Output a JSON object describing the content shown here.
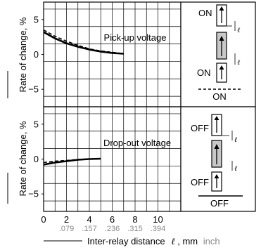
{
  "chart_data": [
    {
      "type": "line",
      "ylabel": "Rate of change, %",
      "annotation": "Pick-up voltage",
      "ylim": [
        -7.5,
        7.5
      ],
      "yticks": [
        5,
        0,
        -5
      ],
      "xlim": [
        0,
        12
      ],
      "series": [
        {
          "style": "solid",
          "x": [
            0,
            1,
            2,
            3,
            4,
            5,
            6,
            7
          ],
          "y": [
            3.2,
            2.3,
            1.6,
            1.1,
            0.7,
            0.4,
            0.2,
            0.1
          ]
        },
        {
          "style": "dashed",
          "x": [
            0,
            1,
            2,
            3,
            4,
            5,
            6,
            7
          ],
          "y": [
            3.5,
            2.6,
            1.9,
            1.3,
            0.8,
            0.5,
            0.3,
            0.1
          ]
        }
      ],
      "diagram": {
        "top_label": "ON",
        "bottom_label": "ON",
        "ratio_label": "ON",
        "symbol": "ℓ"
      }
    },
    {
      "type": "line",
      "ylabel": "Rate of change, %",
      "annotation": "Drop-out voltage",
      "ylim": [
        -7.5,
        7.5
      ],
      "yticks": [
        5,
        0,
        -5
      ],
      "xlim": [
        0,
        12
      ],
      "series": [
        {
          "style": "solid",
          "x": [
            0,
            1,
            2,
            3,
            4,
            5
          ],
          "y": [
            -0.8,
            -0.5,
            -0.3,
            -0.1,
            0.0,
            0.05
          ]
        },
        {
          "style": "dashed",
          "x": [
            0,
            1,
            2,
            3,
            4,
            5
          ],
          "y": [
            -0.5,
            -0.3,
            -0.2,
            -0.05,
            0.0,
            0.05
          ]
        }
      ],
      "diagram": {
        "top_label": "OFF",
        "bottom_label": "OFF",
        "ratio_label": "OFF",
        "symbol": "ℓ"
      }
    }
  ],
  "x_axis": {
    "label": "Inter-relay distance",
    "symbol": "ℓ",
    "unit_mm": ", mm",
    "unit_inch": "inch",
    "ticks_mm": [
      "0",
      "2",
      "4",
      "6",
      "8",
      "10"
    ],
    "ticks_mm_values": [
      0,
      2,
      4,
      6,
      8,
      10
    ],
    "ticks_inch": [
      ".079",
      ".157",
      ".236",
      ".315",
      ".394"
    ],
    "ticks_inch_mm": [
      2,
      4,
      6,
      8,
      10
    ]
  },
  "colors": {
    "gray_fill": "#c8c8c8",
    "inch_text": "#8a8a8a",
    "line": "#000000"
  }
}
